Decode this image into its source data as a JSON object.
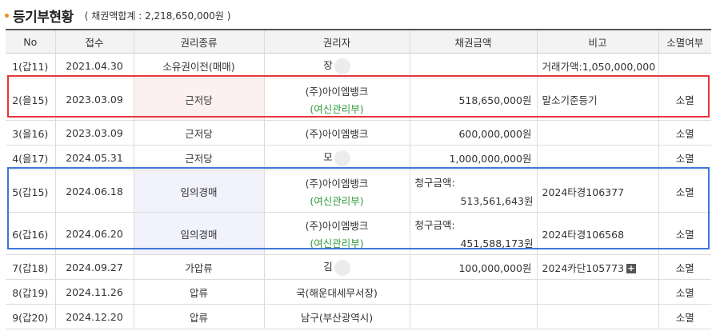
{
  "header": {
    "title": "등기부현황",
    "subtitle": "( 채권액합계 : 2,218,650,000원 )"
  },
  "columns": [
    "No",
    "접수",
    "권리종류",
    "권리자",
    "채권금액",
    "비고",
    "소멸여부"
  ],
  "rows": [
    {
      "no": "1(갑11)",
      "date": "2021.04.30",
      "kind": "소유권이전(매매)",
      "holder": "장",
      "holder_sub": "",
      "claim_label": "",
      "amount": "",
      "note": "거래가액:1,050,000,000",
      "status": ""
    },
    {
      "no": "2(을15)",
      "date": "2023.03.09",
      "kind": "근저당",
      "holder": "(주)아이엠뱅크",
      "holder_sub": "(여신관리부)",
      "claim_label": "",
      "amount": "518,650,000원",
      "note": "말소기준등기",
      "status": "소멸"
    },
    {
      "no": "3(을16)",
      "date": "2023.03.09",
      "kind": "근저당",
      "holder": "(주)아이엠뱅크",
      "holder_sub": "",
      "claim_label": "",
      "amount": "600,000,000원",
      "note": "",
      "status": "소멸"
    },
    {
      "no": "4(을17)",
      "date": "2024.05.31",
      "kind": "근저당",
      "holder": "모",
      "holder_sub": "",
      "claim_label": "",
      "amount": "1,000,000,000원",
      "note": "",
      "status": "소멸"
    },
    {
      "no": "5(갑15)",
      "date": "2024.06.18",
      "kind": "임의경매",
      "holder": "(주)아이엠뱅크",
      "holder_sub": "(여신관리부)",
      "claim_label": "청구금액:",
      "amount": "513,561,643원",
      "note": "2024타경106377",
      "status": "소멸"
    },
    {
      "no": "6(갑16)",
      "date": "2024.06.20",
      "kind": "임의경매",
      "holder": "(주)아이엠뱅크",
      "holder_sub": "(여신관리부)",
      "claim_label": "청구금액:",
      "amount": "451,588,173원",
      "note": "2024타경106568",
      "status": "소멸"
    },
    {
      "no": "7(갑18)",
      "date": "2024.09.27",
      "kind": "가압류",
      "holder": "김",
      "holder_sub": "",
      "claim_label": "",
      "amount": "100,000,000원",
      "note": "2024카단105773",
      "status": "소멸"
    },
    {
      "no": "8(갑19)",
      "date": "2024.11.26",
      "kind": "압류",
      "holder": "국(해운대세무서장)",
      "holder_sub": "",
      "claim_label": "",
      "amount": "",
      "note": "",
      "status": "소멸"
    },
    {
      "no": "9(갑20)",
      "date": "2024.12.20",
      "kind": "압류",
      "holder": "남구(부산광역시)",
      "holder_sub": "",
      "claim_label": "",
      "amount": "",
      "note": "",
      "status": "소멸"
    }
  ],
  "colors": {
    "accent_dot": "#f08c1e",
    "highlight_red": "#e8363a",
    "highlight_blue": "#3e78d8",
    "sub_green": "#2e9a3a"
  }
}
